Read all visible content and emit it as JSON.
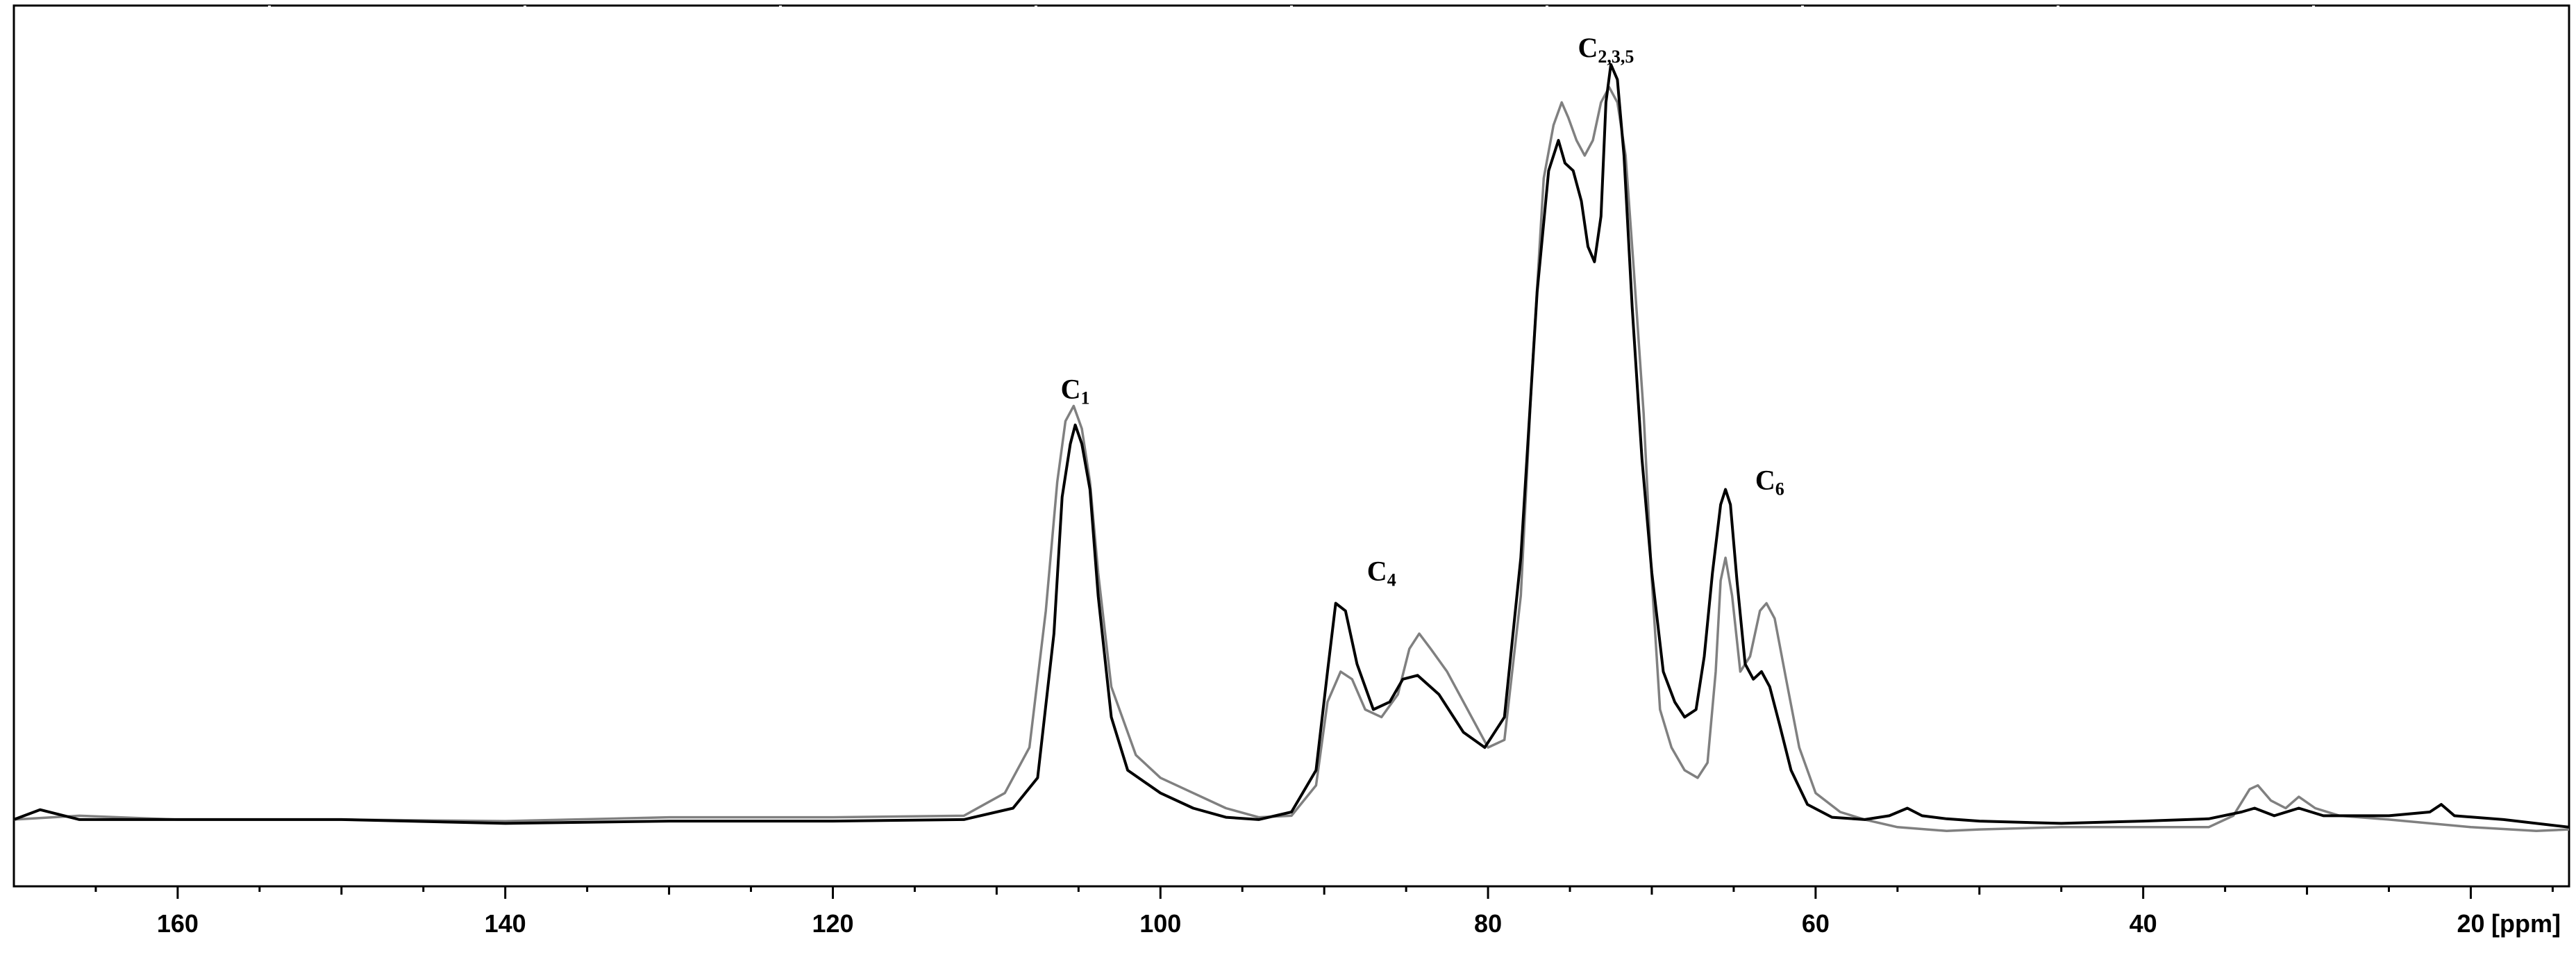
{
  "chart_data": {
    "type": "line",
    "xlabel": "",
    "x_unit_label": "[ppm]",
    "x_reversed": true,
    "xlim": [
      170,
      14
    ],
    "ylim": [
      -0.05,
      1.03
    ],
    "x_ticks": [
      160,
      140,
      120,
      100,
      80,
      60,
      40,
      20
    ],
    "x_tick_labels": [
      "160",
      "140",
      "120",
      "100",
      "80",
      "60",
      "40",
      "20"
    ],
    "grid": false,
    "annotations": [
      {
        "base": "C",
        "sub": "1",
        "x": 105.2,
        "y": 0.56
      },
      {
        "base": "C",
        "sub": "4",
        "x": 86.5,
        "y": 0.32
      },
      {
        "base": "C",
        "sub": "2,3,5",
        "x": 72.8,
        "y": 1.01
      },
      {
        "base": "C",
        "sub": "6",
        "x": 62.8,
        "y": 0.44
      }
    ],
    "series": [
      {
        "color": "#000000",
        "x": [
          170,
          168.4,
          166,
          160,
          150,
          140,
          130,
          120,
          112,
          109,
          107.5,
          106.5,
          106,
          105.5,
          105.2,
          104.8,
          104.3,
          103.8,
          103,
          102,
          100,
          98,
          96,
          94,
          92,
          90.5,
          89.8,
          89.3,
          88.7,
          88,
          87,
          86,
          85.2,
          84.3,
          83,
          81.5,
          80.2,
          79,
          78,
          77,
          76.3,
          75.7,
          75.3,
          74.8,
          74.3,
          73.9,
          73.5,
          73.1,
          72.8,
          72.5,
          72.1,
          71.7,
          71.2,
          70.6,
          70,
          69.3,
          68.6,
          68,
          67.3,
          66.8,
          66.3,
          65.8,
          65.5,
          65.2,
          64.8,
          64.3,
          63.8,
          63.3,
          62.8,
          62.2,
          61.5,
          60.5,
          59,
          57,
          55.5,
          54.4,
          53.5,
          52,
          50,
          45,
          40,
          36,
          34,
          33.2,
          32,
          30.5,
          29,
          25,
          22.5,
          21.8,
          21,
          18,
          14
        ],
        "y": [
          0.005,
          0.018,
          0.005,
          0.005,
          0.005,
          0.0,
          0.003,
          0.003,
          0.005,
          0.02,
          0.06,
          0.25,
          0.43,
          0.5,
          0.525,
          0.5,
          0.44,
          0.3,
          0.14,
          0.07,
          0.04,
          0.02,
          0.008,
          0.005,
          0.015,
          0.07,
          0.2,
          0.29,
          0.28,
          0.21,
          0.15,
          0.16,
          0.19,
          0.195,
          0.17,
          0.12,
          0.1,
          0.14,
          0.35,
          0.7,
          0.86,
          0.9,
          0.87,
          0.86,
          0.82,
          0.76,
          0.74,
          0.8,
          0.95,
          1.0,
          0.98,
          0.88,
          0.68,
          0.48,
          0.33,
          0.2,
          0.16,
          0.14,
          0.15,
          0.22,
          0.33,
          0.42,
          0.44,
          0.42,
          0.32,
          0.21,
          0.19,
          0.2,
          0.18,
          0.13,
          0.07,
          0.025,
          0.008,
          0.005,
          0.01,
          0.02,
          0.01,
          0.006,
          0.003,
          0.0,
          0.003,
          0.006,
          0.015,
          0.02,
          0.01,
          0.02,
          0.01,
          0.01,
          0.015,
          0.025,
          0.01,
          0.005,
          -0.005
        ]
      },
      {
        "color": "#808080",
        "x": [
          170,
          166,
          160,
          150,
          140,
          130,
          120,
          112,
          109.5,
          108,
          107,
          106.3,
          105.8,
          105.3,
          104.8,
          104.3,
          103.8,
          103,
          101.5,
          100,
          98,
          96,
          94,
          92,
          90.5,
          89.8,
          89,
          88.3,
          87.5,
          86.5,
          85.5,
          84.8,
          84.2,
          83.5,
          82.5,
          81,
          80,
          79,
          78,
          77.3,
          76.6,
          76,
          75.5,
          75.1,
          74.6,
          74.1,
          73.6,
          73.1,
          72.6,
          72.1,
          71.6,
          71.1,
          70.5,
          70,
          69.5,
          68.8,
          68,
          67.2,
          66.6,
          66.1,
          65.8,
          65.5,
          65.1,
          64.6,
          64,
          63.4,
          63,
          62.5,
          61.8,
          61,
          60,
          58.5,
          57,
          55,
          52,
          50,
          45,
          40,
          36,
          34.5,
          33.5,
          33,
          32.2,
          31.3,
          30.5,
          29.5,
          28,
          25,
          20,
          16,
          14
        ],
        "y": [
          0.005,
          0.01,
          0.005,
          0.005,
          0.003,
          0.008,
          0.008,
          0.01,
          0.04,
          0.1,
          0.28,
          0.45,
          0.53,
          0.55,
          0.52,
          0.45,
          0.33,
          0.18,
          0.09,
          0.06,
          0.04,
          0.02,
          0.008,
          0.01,
          0.05,
          0.16,
          0.2,
          0.19,
          0.15,
          0.14,
          0.17,
          0.23,
          0.25,
          0.23,
          0.2,
          0.14,
          0.1,
          0.11,
          0.3,
          0.6,
          0.85,
          0.92,
          0.95,
          0.93,
          0.9,
          0.88,
          0.9,
          0.95,
          0.97,
          0.95,
          0.88,
          0.73,
          0.54,
          0.32,
          0.15,
          0.1,
          0.07,
          0.06,
          0.08,
          0.2,
          0.32,
          0.35,
          0.3,
          0.2,
          0.22,
          0.28,
          0.29,
          0.27,
          0.19,
          0.1,
          0.04,
          0.015,
          0.005,
          -0.005,
          -0.01,
          -0.008,
          -0.005,
          -0.005,
          -0.005,
          0.01,
          0.045,
          0.05,
          0.03,
          0.02,
          0.035,
          0.02,
          0.01,
          0.005,
          -0.005,
          -0.01,
          -0.008
        ]
      }
    ]
  }
}
